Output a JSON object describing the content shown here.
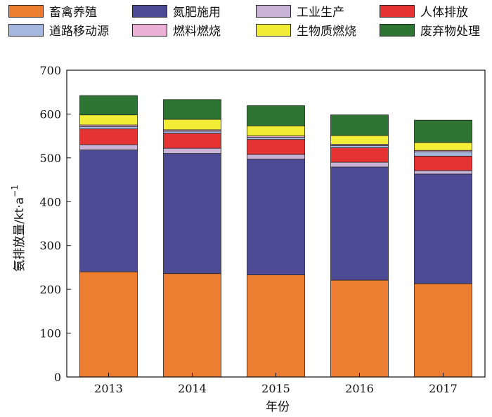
{
  "chart_data": {
    "type": "bar",
    "stacked": true,
    "categories": [
      "2013",
      "2014",
      "2015",
      "2016",
      "2017"
    ],
    "series": [
      {
        "name": "畜禽养殖",
        "color": "#ED7D31",
        "values": [
          240,
          236,
          233,
          221,
          213
        ]
      },
      {
        "name": "氮肥施用",
        "color": "#4E4B96",
        "values": [
          278,
          274,
          264,
          258,
          250
        ]
      },
      {
        "name": "工业生产",
        "color": "#C9B3D6",
        "values": [
          12,
          12,
          11,
          11,
          8
        ]
      },
      {
        "name": "人体排放",
        "color": "#E53232",
        "values": [
          36,
          34,
          34,
          33,
          33
        ]
      },
      {
        "name": "道路移动源",
        "color": "#A7B8E0",
        "values": [
          5,
          5,
          5,
          5,
          10
        ]
      },
      {
        "name": "燃料燃烧",
        "color": "#EAB0D6",
        "values": [
          4,
          3,
          3,
          3,
          3
        ]
      },
      {
        "name": "生物质燃烧",
        "color": "#F2EE38",
        "values": [
          23,
          24,
          23,
          20,
          18
        ]
      },
      {
        "name": "废弃物处理",
        "color": "#2E7533",
        "values": [
          44,
          45,
          46,
          47,
          51
        ]
      }
    ],
    "xlabel": "年份",
    "ylabel": "氨排放量/kt·a",
    "ylabel_superscript": "−1",
    "ylim": [
      0,
      700
    ],
    "yticks": [
      "0",
      "100",
      "200",
      "300",
      "400",
      "500",
      "600",
      "700"
    ],
    "grid": false,
    "legend_position": "top"
  }
}
